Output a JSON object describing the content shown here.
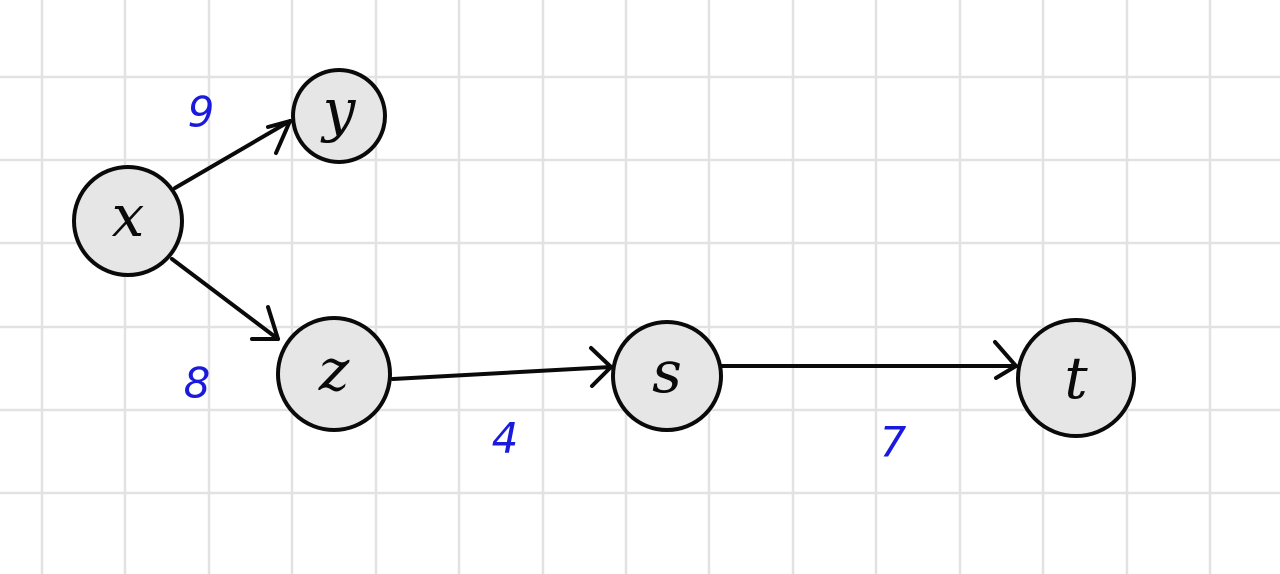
{
  "colors": {
    "grid": "#e2e2e2",
    "node_fill": "#e6e6e6",
    "stroke": "#0a0a0a",
    "weight_text": "#1a1adc",
    "background": "#ffffff"
  },
  "nodes": [
    {
      "id": "x",
      "label": "x"
    },
    {
      "id": "y",
      "label": "y"
    },
    {
      "id": "z",
      "label": "z"
    },
    {
      "id": "s",
      "label": "s"
    },
    {
      "id": "t",
      "label": "t"
    }
  ],
  "edges": [
    {
      "from": "x",
      "to": "y",
      "weight": "9"
    },
    {
      "from": "x",
      "to": "z",
      "weight": "8"
    },
    {
      "from": "z",
      "to": "s",
      "weight": "4"
    },
    {
      "from": "s",
      "to": "t",
      "weight": "7"
    }
  ]
}
